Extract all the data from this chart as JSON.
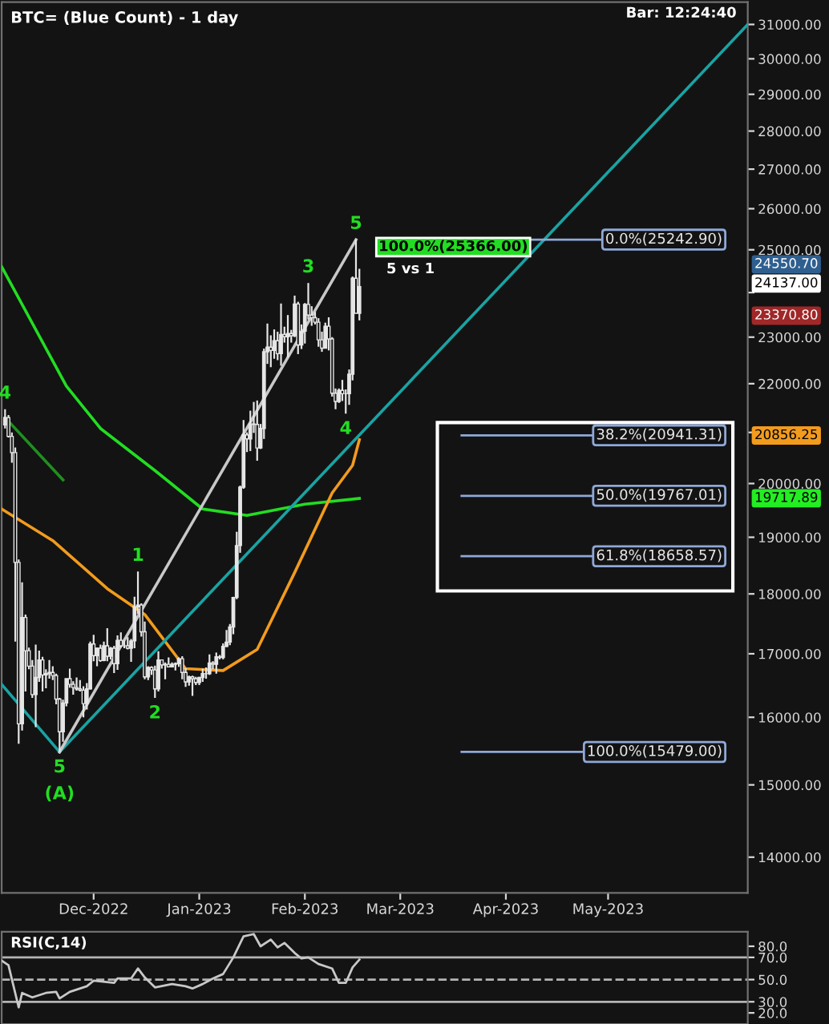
{
  "chart_data": [
    {
      "type": "candlestick",
      "title": "BTC= (Blue Count) - 1 day",
      "color": "#e6e6e6",
      "log": true,
      "xlim": [
        "2022-11-04",
        "2023-06-11"
      ],
      "xticks": [
        {
          "value": "2022-12-01",
          "label": "Dec-2022"
        },
        {
          "value": "2023-01-01",
          "label": "Jan-2023"
        },
        {
          "value": "2023-02-01",
          "label": "Feb-2023"
        },
        {
          "value": "2023-03-01",
          "label": "Mar-2023"
        },
        {
          "value": "2023-04-01",
          "label": "Apr-2023"
        },
        {
          "value": "2023-05-01",
          "label": "May-2023"
        }
      ],
      "ylim": [
        13530,
        31670
      ],
      "yticks": [
        {
          "value": 14000,
          "label": "14000.00"
        },
        {
          "value": 15000,
          "label": "15000.00"
        },
        {
          "value": 16000,
          "label": "16000.00"
        },
        {
          "value": 17000,
          "label": "17000.00"
        },
        {
          "value": 18000,
          "label": "18000.00"
        },
        {
          "value": 19000,
          "label": "19000.00"
        },
        {
          "value": 20000,
          "label": "20000.00"
        },
        {
          "value": 21000,
          "label": null
        },
        {
          "value": 22000,
          "label": "22000.00"
        },
        {
          "value": 23000,
          "label": "23000.00"
        },
        {
          "value": 24000,
          "label": null
        },
        {
          "value": 25000,
          "label": "25000.00"
        },
        {
          "value": 26000,
          "label": "26000.00"
        },
        {
          "value": 27000,
          "label": "27000.00"
        },
        {
          "value": 28000,
          "label": "28000.00"
        },
        {
          "value": 29000,
          "label": "29000.00"
        },
        {
          "value": 30000,
          "label": "30000.00"
        },
        {
          "value": 31000,
          "label": "31000.00"
        }
      ],
      "x": [
        "2022-11-05",
        "2022-11-06",
        "2022-11-07",
        "2022-11-08",
        "2022-11-09",
        "2022-11-10",
        "2022-11-11",
        "2022-11-12",
        "2022-11-13",
        "2022-11-14",
        "2022-11-15",
        "2022-11-16",
        "2022-11-17",
        "2022-11-18",
        "2022-11-19",
        "2022-11-20",
        "2022-11-21",
        "2022-11-22",
        "2022-11-23",
        "2022-11-24",
        "2022-11-25",
        "2022-11-26",
        "2022-11-27",
        "2022-11-28",
        "2022-11-29",
        "2022-11-30",
        "2022-12-01",
        "2022-12-02",
        "2022-12-03",
        "2022-12-04",
        "2022-12-05",
        "2022-12-06",
        "2022-12-07",
        "2022-12-08",
        "2022-12-09",
        "2022-12-10",
        "2022-12-11",
        "2022-12-12",
        "2022-12-13",
        "2022-12-14",
        "2022-12-15",
        "2022-12-16",
        "2022-12-17",
        "2022-12-18",
        "2022-12-19",
        "2022-12-20",
        "2022-12-21",
        "2022-12-22",
        "2022-12-23",
        "2022-12-24",
        "2022-12-25",
        "2022-12-26",
        "2022-12-27",
        "2022-12-28",
        "2022-12-29",
        "2022-12-30",
        "2022-12-31",
        "2023-01-01",
        "2023-01-02",
        "2023-01-03",
        "2023-01-04",
        "2023-01-05",
        "2023-01-06",
        "2023-01-07",
        "2023-01-08",
        "2023-01-09",
        "2023-01-10",
        "2023-01-11",
        "2023-01-12",
        "2023-01-13",
        "2023-01-14",
        "2023-01-15",
        "2023-01-16",
        "2023-01-17",
        "2023-01-18",
        "2023-01-19",
        "2023-01-20",
        "2023-01-21",
        "2023-01-22",
        "2023-01-23",
        "2023-01-24",
        "2023-01-25",
        "2023-01-26",
        "2023-01-27",
        "2023-01-28",
        "2023-01-29",
        "2023-01-30",
        "2023-01-31",
        "2023-02-01",
        "2023-02-02",
        "2023-02-03",
        "2023-02-04",
        "2023-02-05",
        "2023-02-06",
        "2023-02-07",
        "2023-02-08",
        "2023-02-09",
        "2023-02-10",
        "2023-02-11",
        "2023-02-12",
        "2023-02-13",
        "2023-02-14",
        "2023-02-15",
        "2023-02-16",
        "2023-02-17"
      ],
      "ohlc": [
        [
          21150,
          21470,
          21080,
          21300
        ],
        [
          21300,
          21350,
          20900,
          20920
        ],
        [
          20920,
          21000,
          20400,
          20600
        ],
        [
          20600,
          20700,
          17200,
          18550
        ],
        [
          18550,
          18600,
          15600,
          15900
        ],
        [
          15900,
          18200,
          15800,
          17600
        ],
        [
          17600,
          17650,
          16400,
          17050
        ],
        [
          17050,
          17100,
          16750,
          16800
        ],
        [
          16800,
          16900,
          16300,
          16350
        ],
        [
          16350,
          17150,
          15850,
          16620
        ],
        [
          16620,
          17050,
          16550,
          16900
        ],
        [
          16900,
          16950,
          16400,
          16660
        ],
        [
          16660,
          16750,
          16450,
          16680
        ],
        [
          16680,
          16900,
          16600,
          16700
        ],
        [
          16700,
          16800,
          16580,
          16650
        ],
        [
          16650,
          16680,
          16200,
          16280
        ],
        [
          16280,
          16300,
          15479,
          15780
        ],
        [
          15780,
          16270,
          15630,
          16220
        ],
        [
          16220,
          16600,
          16170,
          16600
        ],
        [
          16600,
          16760,
          16460,
          16510
        ],
        [
          16510,
          16560,
          16350,
          16460
        ],
        [
          16460,
          16620,
          16410,
          16440
        ],
        [
          16440,
          16580,
          16400,
          16420
        ],
        [
          16420,
          16480,
          16000,
          16210
        ],
        [
          16210,
          16530,
          16120,
          16440
        ],
        [
          16440,
          17200,
          16430,
          17160
        ],
        [
          17160,
          17310,
          16880,
          16970
        ],
        [
          16970,
          17100,
          16800,
          17090
        ],
        [
          17090,
          17150,
          16870,
          16890
        ],
        [
          16890,
          17200,
          16880,
          17130
        ],
        [
          17130,
          17420,
          16880,
          16960
        ],
        [
          16960,
          17110,
          16910,
          17090
        ],
        [
          17090,
          17130,
          16690,
          16840
        ],
        [
          16840,
          17300,
          16740,
          17220
        ],
        [
          17220,
          17350,
          17100,
          17130
        ],
        [
          17130,
          17220,
          17090,
          17130
        ],
        [
          17130,
          17270,
          17070,
          17090
        ],
        [
          17090,
          17240,
          16870,
          17210
        ],
        [
          17210,
          17950,
          17090,
          17780
        ],
        [
          17780,
          18390,
          17660,
          17810
        ],
        [
          17810,
          17840,
          17280,
          17360
        ],
        [
          17360,
          17530,
          16590,
          16630
        ],
        [
          16630,
          16800,
          16580,
          16780
        ],
        [
          16780,
          16800,
          16660,
          16740
        ],
        [
          16740,
          16810,
          16300,
          16440
        ],
        [
          16440,
          17040,
          16400,
          16900
        ],
        [
          16900,
          16910,
          16760,
          16820
        ],
        [
          16820,
          16860,
          16590,
          16830
        ],
        [
          16830,
          16940,
          16780,
          16790
        ],
        [
          16790,
          16860,
          16790,
          16830
        ],
        [
          16830,
          16860,
          16730,
          16840
        ],
        [
          16840,
          16940,
          16790,
          16920
        ],
        [
          16920,
          16960,
          16590,
          16700
        ],
        [
          16700,
          16770,
          16470,
          16550
        ],
        [
          16550,
          16650,
          16490,
          16630
        ],
        [
          16630,
          16650,
          16330,
          16600
        ],
        [
          16600,
          16630,
          16500,
          16540
        ],
        [
          16540,
          16630,
          16500,
          16620
        ],
        [
          16620,
          16760,
          16550,
          16680
        ],
        [
          16680,
          16780,
          16600,
          16680
        ],
        [
          16680,
          16990,
          16660,
          16850
        ],
        [
          16850,
          16880,
          16750,
          16830
        ],
        [
          16830,
          17020,
          16680,
          16950
        ],
        [
          16950,
          16980,
          16910,
          16940
        ],
        [
          16940,
          17170,
          16910,
          17120
        ],
        [
          17120,
          17390,
          17110,
          17190
        ],
        [
          17190,
          17490,
          17140,
          17440
        ],
        [
          17440,
          17950,
          17320,
          17940
        ],
        [
          17940,
          19100,
          17910,
          18850
        ],
        [
          18850,
          19960,
          18720,
          19930
        ],
        [
          19930,
          21250,
          19900,
          20950
        ],
        [
          20950,
          21000,
          20610,
          20870
        ],
        [
          20870,
          21440,
          20630,
          21170
        ],
        [
          21170,
          21620,
          20990,
          21160
        ],
        [
          21160,
          21650,
          20440,
          20690
        ],
        [
          20690,
          21170,
          20670,
          21080
        ],
        [
          21080,
          22750,
          20870,
          22680
        ],
        [
          22680,
          23300,
          22420,
          22780
        ],
        [
          22780,
          23040,
          22350,
          22710
        ],
        [
          22710,
          23170,
          22530,
          22920
        ],
        [
          22920,
          23120,
          22500,
          22640
        ],
        [
          22640,
          23750,
          22380,
          23060
        ],
        [
          23060,
          23230,
          22880,
          23010
        ],
        [
          23010,
          23490,
          22560,
          23080
        ],
        [
          23080,
          23160,
          22880,
          23030
        ],
        [
          23030,
          23930,
          23000,
          23740
        ],
        [
          23740,
          23790,
          22630,
          22830
        ],
        [
          22830,
          23280,
          22740,
          23130
        ],
        [
          23130,
          23760,
          22860,
          23730
        ],
        [
          23730,
          24220,
          23390,
          23490
        ],
        [
          23490,
          23690,
          23250,
          23430
        ],
        [
          23430,
          23560,
          23280,
          23330
        ],
        [
          23330,
          23420,
          22790,
          22940
        ],
        [
          22940,
          23120,
          22680,
          22760
        ],
        [
          22760,
          23320,
          22750,
          23240
        ],
        [
          23240,
          23440,
          22710,
          22960
        ],
        [
          22960,
          23000,
          21730,
          21800
        ],
        [
          21800,
          21900,
          21470,
          21630
        ],
        [
          21630,
          21900,
          21600,
          21860
        ],
        [
          21860,
          22080,
          21640,
          21790
        ],
        [
          21790,
          21880,
          21380,
          21790
        ],
        [
          21790,
          22300,
          21560,
          22200
        ],
        [
          22200,
          24370,
          22070,
          24330
        ],
        [
          24330,
          25242.9,
          23530,
          23530
        ],
        [
          23530,
          24550.7,
          23370.8,
          24137
        ]
      ],
      "series": [
        {
          "type": "line",
          "color": "#22dd22",
          "x": [
            "2022-11-04",
            "2022-11-23",
            "2022-12-03",
            "2022-12-19",
            "2023-01-02",
            "2023-01-15",
            "2023-02-01",
            "2023-02-17"
          ],
          "values": [
            24600,
            21950,
            21080,
            20250,
            19520,
            19400,
            19610,
            19717.89
          ]
        },
        {
          "type": "line",
          "color": "#f29b1d",
          "x": [
            "2022-11-04",
            "2022-11-19",
            "2022-12-05",
            "2022-12-16",
            "2022-12-28",
            "2023-01-08",
            "2023-01-18",
            "2023-01-29",
            "2023-02-09",
            "2023-02-15",
            "2023-02-17"
          ],
          "values": [
            19520,
            18940,
            18090,
            17650,
            16760,
            16730,
            17070,
            18370,
            19820,
            20350,
            20856.25
          ]
        },
        {
          "type": "line",
          "color": "#1f8f1f",
          "x": [
            "2022-11-05",
            "2022-11-22"
          ],
          "values": [
            21300,
            20070
          ]
        },
        {
          "type": "line",
          "color": "#1aa3a3",
          "x": [
            "2022-11-04",
            "2022-11-21"
          ],
          "values": [
            16510,
            15479
          ]
        },
        {
          "type": "line",
          "color": "#1aa3a3",
          "x": [
            "2022-11-21",
            "2023-06-11"
          ],
          "values": [
            15479,
            31000
          ]
        },
        {
          "type": "line",
          "color": "#c8c8c8",
          "x": [
            "2022-11-21",
            "2023-02-16"
          ],
          "values": [
            15479,
            25242.9
          ]
        }
      ],
      "ref_lines": [
        {
          "axis": "y",
          "value": 25242.9,
          "label": "0.0%(25242.90)",
          "color": "#8fa8d8",
          "line_style": "solid"
        },
        {
          "axis": "y",
          "value": 20941.31,
          "label": "38.2%(20941.31)",
          "color": "#8fa8d8",
          "line_style": "solid"
        },
        {
          "axis": "y",
          "value": 19767.01,
          "label": "50.0%(19767.01)",
          "color": "#8fa8d8",
          "line_style": "solid"
        },
        {
          "axis": "y",
          "value": 18658.57,
          "label": "61.8%(18658.57)",
          "color": "#8fa8d8",
          "line_style": "solid"
        },
        {
          "axis": "y",
          "value": 15479,
          "label": "100.0%(15479.00)",
          "color": "#8fa8d8",
          "line_style": "solid"
        }
      ],
      "annotations": [
        "Bar: 12:24:40",
        "100.0%(25366.00)",
        "5 vs 1",
        "24550.70",
        "24137.00",
        "23370.80",
        "20856.25",
        "19717.89",
        {
          "text": "4",
          "x": "2022-11-05",
          "y": 21470
        },
        {
          "text": "5",
          "x": "2022-11-21",
          "y": 15479
        },
        {
          "text": "(A)",
          "x": "2022-11-21",
          "y": 15479
        },
        {
          "text": "1",
          "x": "2022-12-14",
          "y": 18390
        },
        {
          "text": "2",
          "x": "2022-12-19",
          "y": 16300
        },
        {
          "text": "3",
          "x": "2023-02-02",
          "y": 24220
        },
        {
          "text": "4",
          "x": "2023-02-13",
          "y": 21380
        },
        {
          "text": "5",
          "x": "2023-02-16",
          "y": 25242.9
        }
      ]
    },
    {
      "type": "line",
      "title": "RSI(C,14)",
      "tick_labels": "y",
      "xlim": [
        "2022-11-04",
        "2023-06-11"
      ],
      "ylim": [
        10,
        93
      ],
      "yticks": [
        {
          "value": 20,
          "label": "20.0"
        },
        {
          "value": 30,
          "label": "30.0"
        },
        {
          "value": 50,
          "label": "50.0"
        },
        {
          "value": 70,
          "label": "70.0"
        },
        {
          "value": 80,
          "label": "80.0"
        }
      ],
      "series": [
        {
          "type": "line",
          "color": "#c8c8c8",
          "x": [
            "2022-11-04",
            "2022-11-06",
            "2022-11-09",
            "2022-11-10",
            "2022-11-13",
            "2022-11-17",
            "2022-11-20",
            "2022-11-21",
            "2022-11-24",
            "2022-11-29",
            "2022-12-01",
            "2022-12-07",
            "2022-12-08",
            "2022-12-12",
            "2022-12-14",
            "2022-12-16",
            "2022-12-19",
            "2022-12-24",
            "2022-12-28",
            "2022-12-30",
            "2023-01-02",
            "2023-01-05",
            "2023-01-08",
            "2023-01-11",
            "2023-01-14",
            "2023-01-17",
            "2023-01-19",
            "2023-01-22",
            "2023-01-24",
            "2023-01-26",
            "2023-01-29",
            "2023-01-31",
            "2023-02-02",
            "2023-02-05",
            "2023-02-09",
            "2023-02-11",
            "2023-02-13",
            "2023-02-15",
            "2023-02-17"
          ],
          "values": [
            67,
            63,
            25,
            38,
            34,
            38,
            39,
            33,
            39,
            44,
            49,
            47,
            51,
            51,
            60,
            52,
            43,
            46,
            44,
            42,
            46,
            51,
            55,
            70,
            89,
            91,
            80,
            86,
            79,
            83,
            74,
            69,
            70,
            64,
            60,
            47,
            47,
            61,
            68
          ]
        }
      ],
      "ref_lines": [
        {
          "axis": "y",
          "value": 70,
          "color": "#b4b4b4",
          "line_style": "solid"
        },
        {
          "axis": "y",
          "value": 50,
          "color": "#b4b4b4",
          "line_style": "dashed"
        },
        {
          "axis": "y",
          "value": 30,
          "color": "#b4b4b4",
          "line_style": "solid"
        }
      ]
    }
  ]
}
